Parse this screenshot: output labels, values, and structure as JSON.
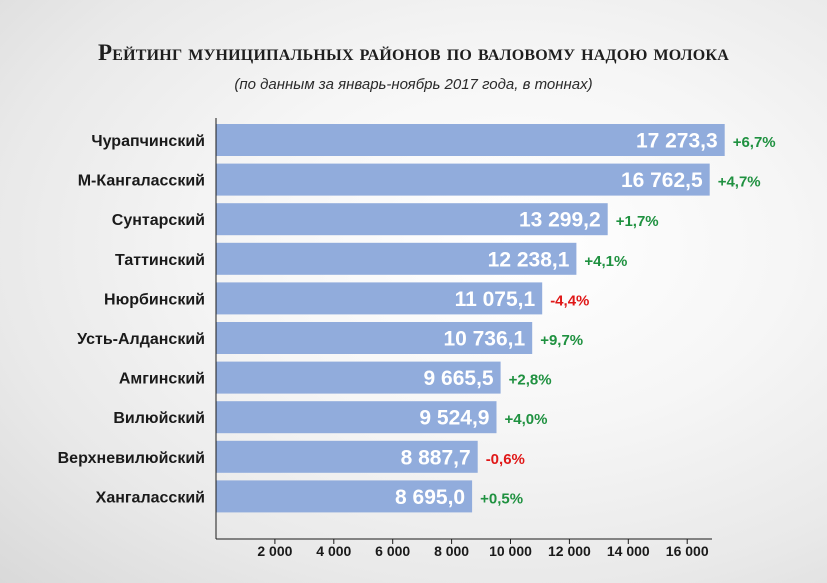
{
  "chart_data": {
    "type": "bar",
    "orientation": "horizontal",
    "title": "Рейтинг муниципальных районов по валовому надою молока",
    "subtitle": "(по данным за январь-ноябрь 2017 года, в тоннах)",
    "categories": [
      "Чурапчинский",
      "М-Кангаласский",
      "Сунтарский",
      "Таттинский",
      "Нюрбинский",
      "Усть-Алданский",
      "Амгинский",
      "Вилюйский",
      "Верхневилюйский",
      "Хангаласский"
    ],
    "values": [
      17273.3,
      16762.5,
      13299.2,
      12238.1,
      11075.1,
      10736.1,
      9665.5,
      9524.9,
      8887.7,
      8695.0
    ],
    "value_labels": [
      "17 273,3",
      "16 762,5",
      "13 299,2",
      "12 238,1",
      "11 075,1",
      "10 736,1",
      "9 665,5",
      "9 524,9",
      "8 887,7",
      "8 695,0"
    ],
    "changes": [
      "+6,7%",
      "+4,7%",
      "+1,7%",
      "+4,1%",
      "-4,4%",
      "+9,7%",
      "+2,8%",
      "+4,0%",
      "-0,6%",
      "+0,5%"
    ],
    "ticks": [
      2000,
      4000,
      6000,
      8000,
      10000,
      12000,
      14000,
      16000
    ],
    "tick_labels": [
      "2 000",
      "4 000",
      "6 000",
      "8 000",
      "10 000",
      "12 000",
      "14 000",
      "16 000"
    ],
    "xlim": [
      0,
      17700
    ],
    "grid": false,
    "colors": {
      "bar": "#91acdc",
      "value_text": "#ffffff",
      "positive": "#1f9140",
      "negative": "#e01818",
      "axis": "#1a1a1a"
    }
  }
}
